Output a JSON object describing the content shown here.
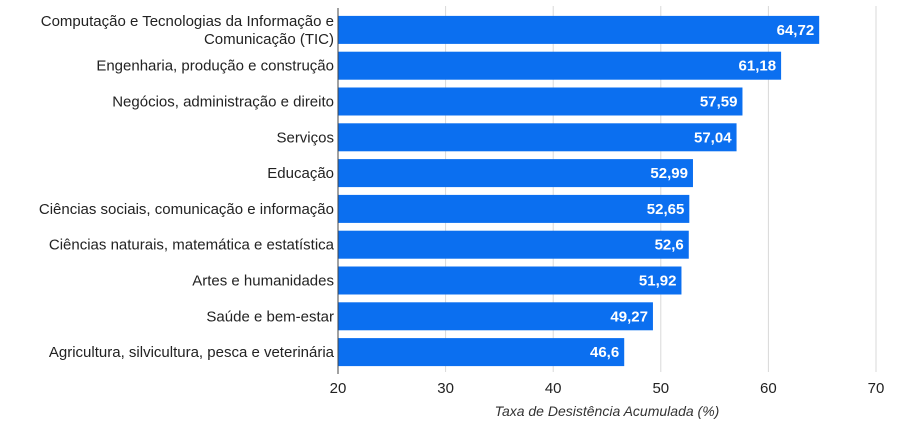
{
  "chart_data": {
    "type": "bar",
    "orientation": "horizontal",
    "categories": [
      [
        "Computação e Tecnologias da Informação e",
        "Comunicação (TIC)"
      ],
      [
        "Engenharia, produção e construção"
      ],
      [
        "Negócios, administração e direito"
      ],
      [
        "Serviços"
      ],
      [
        "Educação"
      ],
      [
        "Ciências sociais, comunicação e informação"
      ],
      [
        "Ciências naturais, matemática e estatística"
      ],
      [
        "Artes e humanidades"
      ],
      [
        "Saúde e bem-estar"
      ],
      [
        "Agricultura, silvicultura, pesca e veterinária"
      ]
    ],
    "values": [
      64.72,
      61.18,
      57.59,
      57.04,
      52.99,
      52.65,
      52.6,
      51.92,
      49.27,
      46.6
    ],
    "value_labels": [
      "64,72",
      "61,18",
      "57,59",
      "57,04",
      "52,99",
      "52,65",
      "52,6",
      "51,92",
      "49,27",
      "46,6"
    ],
    "xlabel": "Taxa de Desistência Acumulada (%)",
    "xlim": [
      20,
      70
    ],
    "xticks": [
      20,
      30,
      40,
      50,
      60,
      70
    ],
    "xtick_labels": [
      "20",
      "30",
      "40",
      "50",
      "60",
      "70"
    ],
    "grid": true,
    "bar_color": "#0b6ff0",
    "grid_color": "#d9d9d9"
  }
}
